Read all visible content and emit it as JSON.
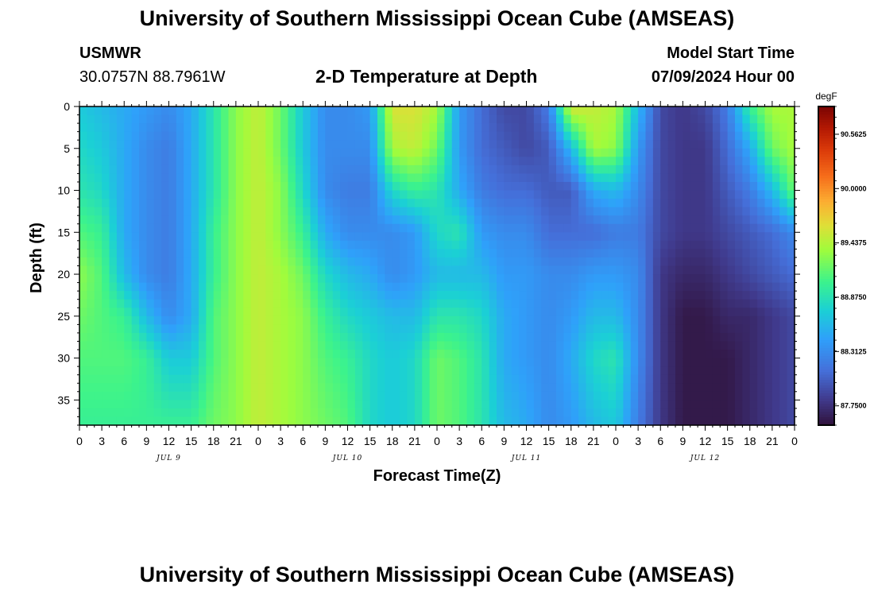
{
  "header": {
    "title": "University of Southern Mississippi Ocean Cube (AMSEAS)",
    "station": "USMWR",
    "coords": "30.0757N  88.7961W",
    "subtitle": "2-D Temperature at Depth",
    "model_start_label": "Model Start Time",
    "model_start_value": "07/09/2024 Hour 00"
  },
  "footer": {
    "title": "University of Southern Mississippi Ocean Cube (AMSEAS)"
  },
  "chart_data": {
    "type": "heatmap",
    "xlabel": "Forecast Time(Z)",
    "ylabel": "Depth (ft)",
    "x_range": [
      0,
      96
    ],
    "y_range": [
      0,
      38
    ],
    "y_inverted": true,
    "x_ticks": [
      "0",
      "3",
      "6",
      "9",
      "12",
      "15",
      "18",
      "21",
      "0",
      "3",
      "6",
      "9",
      "12",
      "15",
      "18",
      "21",
      "0",
      "3",
      "6",
      "9",
      "12",
      "15",
      "18",
      "21",
      "0",
      "3",
      "6",
      "9",
      "12",
      "15",
      "18",
      "21",
      "0"
    ],
    "y_ticks": [
      0,
      5,
      10,
      15,
      20,
      25,
      30,
      35
    ],
    "day_labels": [
      {
        "label": "JUL 9",
        "hour": 12
      },
      {
        "label": "JUL 10",
        "hour": 36
      },
      {
        "label": "JUL 11",
        "hour": 60
      },
      {
        "label": "JUL 12",
        "hour": 84
      }
    ],
    "colorbar": {
      "unit": "degF",
      "min": 87.55,
      "max": 90.85,
      "ticks": [
        "90.5625",
        "90.0000",
        "89.4375",
        "88.8750",
        "88.3125",
        "87.7500"
      ],
      "tick_values": [
        90.5625,
        90.0,
        89.4375,
        88.875,
        88.3125,
        87.75
      ]
    },
    "profiles_degF": [
      {
        "hour": 0,
        "d": [
          0,
          5,
          10,
          15,
          20,
          25,
          30,
          38
        ],
        "t": [
          88.7,
          88.8,
          88.9,
          89.1,
          89.3,
          89.2,
          89.1,
          89.0
        ]
      },
      {
        "hour": 3,
        "d": [
          0,
          5,
          10,
          15,
          20,
          25,
          30,
          38
        ],
        "t": [
          88.6,
          88.7,
          88.8,
          89.0,
          89.1,
          89.1,
          89.1,
          89.0
        ]
      },
      {
        "hour": 6,
        "d": [
          0,
          5,
          10,
          15,
          20,
          25,
          30,
          38
        ],
        "t": [
          88.5,
          88.5,
          88.5,
          88.5,
          88.6,
          89.0,
          89.1,
          89.0
        ]
      },
      {
        "hour": 9,
        "d": [
          0,
          5,
          10,
          15,
          20,
          25,
          30,
          38
        ],
        "t": [
          88.4,
          88.3,
          88.3,
          88.3,
          88.3,
          88.6,
          89.0,
          89.0
        ]
      },
      {
        "hour": 12,
        "d": [
          0,
          5,
          10,
          15,
          20,
          25,
          30,
          38
        ],
        "t": [
          88.3,
          88.2,
          88.2,
          88.2,
          88.2,
          88.3,
          88.7,
          89.0
        ]
      },
      {
        "hour": 15,
        "d": [
          0,
          5,
          10,
          15,
          20,
          25,
          30,
          38
        ],
        "t": [
          88.5,
          88.5,
          88.5,
          88.5,
          88.5,
          88.5,
          88.7,
          89.0
        ]
      },
      {
        "hour": 18,
        "d": [
          0,
          5,
          10,
          15,
          20,
          25,
          30,
          38
        ],
        "t": [
          88.9,
          88.9,
          88.9,
          89.0,
          89.0,
          89.1,
          89.1,
          89.2
        ]
      },
      {
        "hour": 21,
        "d": [
          0,
          5,
          10,
          15,
          20,
          25,
          30,
          38
        ],
        "t": [
          89.3,
          89.3,
          89.3,
          89.3,
          89.3,
          89.3,
          89.3,
          89.3
        ]
      },
      {
        "hour": 24,
        "d": [
          0,
          5,
          10,
          15,
          20,
          25,
          30,
          38
        ],
        "t": [
          89.5,
          89.5,
          89.5,
          89.5,
          89.5,
          89.5,
          89.5,
          89.5
        ]
      },
      {
        "hour": 27,
        "d": [
          0,
          5,
          10,
          15,
          20,
          25,
          30,
          38
        ],
        "t": [
          89.2,
          89.2,
          89.3,
          89.3,
          89.4,
          89.4,
          89.4,
          89.4
        ]
      },
      {
        "hour": 30,
        "d": [
          0,
          5,
          10,
          15,
          20,
          25,
          30,
          38
        ],
        "t": [
          88.7,
          88.7,
          88.8,
          89.0,
          89.2,
          89.3,
          89.3,
          89.3
        ]
      },
      {
        "hour": 33,
        "d": [
          0,
          5,
          10,
          15,
          20,
          25,
          30,
          38
        ],
        "t": [
          88.3,
          88.3,
          88.3,
          88.5,
          88.8,
          89.0,
          89.1,
          89.2
        ]
      },
      {
        "hour": 36,
        "d": [
          0,
          5,
          10,
          15,
          20,
          25,
          30,
          38
        ],
        "t": [
          88.3,
          88.3,
          88.2,
          88.3,
          88.6,
          88.8,
          89.0,
          89.1
        ]
      },
      {
        "hour": 39,
        "d": [
          0,
          5,
          10,
          15,
          20,
          25,
          30,
          38
        ],
        "t": [
          88.4,
          88.3,
          88.2,
          88.3,
          88.5,
          88.7,
          88.8,
          88.8
        ]
      },
      {
        "hour": 42,
        "d": [
          0,
          5,
          10,
          15,
          20,
          25,
          30,
          38
        ],
        "t": [
          89.6,
          89.4,
          88.8,
          88.3,
          88.3,
          88.6,
          88.7,
          88.7
        ]
      },
      {
        "hour": 45,
        "d": [
          0,
          5,
          10,
          15,
          20,
          25,
          30,
          38
        ],
        "t": [
          89.6,
          89.5,
          89.0,
          88.4,
          88.4,
          88.6,
          88.8,
          88.8
        ]
      },
      {
        "hour": 48,
        "d": [
          0,
          5,
          10,
          15,
          20,
          25,
          30,
          38
        ],
        "t": [
          89.4,
          89.2,
          88.9,
          88.8,
          88.6,
          88.9,
          89.2,
          89.2
        ]
      },
      {
        "hour": 51,
        "d": [
          0,
          5,
          10,
          15,
          20,
          25,
          30,
          38
        ],
        "t": [
          88.4,
          88.4,
          88.5,
          88.9,
          88.6,
          88.9,
          89.1,
          89.1
        ]
      },
      {
        "hour": 54,
        "d": [
          0,
          5,
          10,
          15,
          20,
          25,
          30,
          38
        ],
        "t": [
          88.1,
          88.1,
          88.2,
          88.4,
          88.6,
          88.8,
          88.9,
          88.9
        ]
      },
      {
        "hour": 57,
        "d": [
          0,
          5,
          10,
          15,
          20,
          25,
          30,
          38
        ],
        "t": [
          87.9,
          88.0,
          88.1,
          88.3,
          88.4,
          88.5,
          88.5,
          88.6
        ]
      },
      {
        "hour": 60,
        "d": [
          0,
          5,
          10,
          15,
          20,
          25,
          30,
          38
        ],
        "t": [
          87.9,
          87.9,
          88.1,
          88.3,
          88.4,
          88.4,
          88.4,
          88.5
        ]
      },
      {
        "hour": 63,
        "d": [
          0,
          5,
          10,
          15,
          20,
          25,
          30,
          38
        ],
        "t": [
          88.2,
          88.0,
          88.0,
          88.1,
          88.3,
          88.3,
          88.3,
          88.3
        ]
      },
      {
        "hour": 66,
        "d": [
          0,
          5,
          10,
          15,
          20,
          25,
          30,
          38
        ],
        "t": [
          89.6,
          88.6,
          88.0,
          88.1,
          88.3,
          88.4,
          88.5,
          88.4
        ]
      },
      {
        "hour": 69,
        "d": [
          0,
          5,
          10,
          15,
          20,
          25,
          30,
          38
        ],
        "t": [
          89.5,
          89.4,
          88.5,
          88.1,
          88.4,
          88.6,
          88.8,
          88.6
        ]
      },
      {
        "hour": 72,
        "d": [
          0,
          5,
          10,
          15,
          20,
          25,
          30,
          38
        ],
        "t": [
          89.4,
          89.3,
          88.6,
          88.2,
          88.4,
          88.6,
          88.9,
          88.7
        ]
      },
      {
        "hour": 75,
        "d": [
          0,
          5,
          10,
          15,
          20,
          25,
          30,
          38
        ],
        "t": [
          88.6,
          88.4,
          88.3,
          88.2,
          88.3,
          88.3,
          88.3,
          88.2
        ]
      },
      {
        "hour": 78,
        "d": [
          0,
          5,
          10,
          15,
          20,
          25,
          30,
          38
        ],
        "t": [
          87.9,
          87.9,
          87.9,
          87.9,
          87.8,
          87.8,
          87.8,
          87.8
        ]
      },
      {
        "hour": 81,
        "d": [
          0,
          5,
          10,
          15,
          20,
          25,
          30,
          38
        ],
        "t": [
          87.8,
          87.8,
          87.8,
          87.8,
          87.7,
          87.6,
          87.6,
          87.6
        ]
      },
      {
        "hour": 84,
        "d": [
          0,
          5,
          10,
          15,
          20,
          25,
          30,
          38
        ],
        "t": [
          87.9,
          87.8,
          87.8,
          87.8,
          87.7,
          87.6,
          87.6,
          87.6
        ]
      },
      {
        "hour": 87,
        "d": [
          0,
          5,
          10,
          15,
          20,
          25,
          30,
          38
        ],
        "t": [
          88.2,
          88.1,
          88.0,
          87.9,
          87.8,
          87.7,
          87.6,
          87.6
        ]
      },
      {
        "hour": 90,
        "d": [
          0,
          5,
          10,
          15,
          20,
          25,
          30,
          38
        ],
        "t": [
          89.0,
          88.5,
          88.2,
          88.0,
          87.9,
          87.7,
          87.7,
          87.7
        ]
      },
      {
        "hour": 93,
        "d": [
          0,
          5,
          10,
          15,
          20,
          25,
          30,
          38
        ],
        "t": [
          89.4,
          89.2,
          88.6,
          88.1,
          88.0,
          87.8,
          87.8,
          87.8
        ]
      },
      {
        "hour": 96,
        "d": [
          0,
          5,
          10,
          15,
          20,
          25,
          30,
          38
        ],
        "t": [
          89.4,
          89.4,
          89.2,
          88.3,
          88.1,
          87.9,
          87.9,
          87.9
        ]
      }
    ]
  }
}
